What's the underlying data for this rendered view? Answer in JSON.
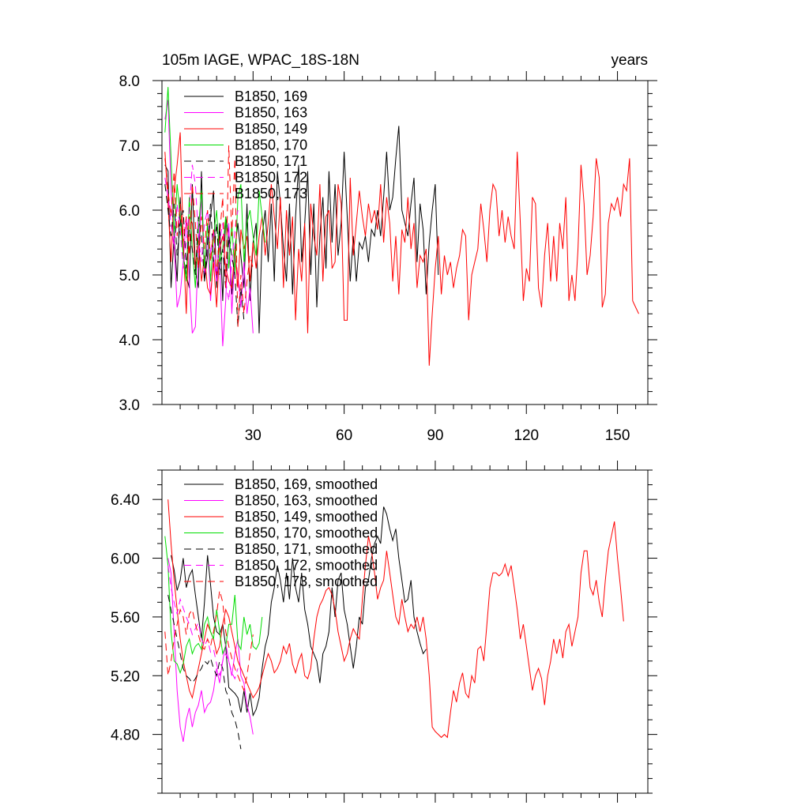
{
  "chart_data": [
    {
      "type": "line",
      "title_left": "105m IAGE, WPAC_18S-18N",
      "title_right": "years",
      "xlabel": "",
      "ylabel": "",
      "xlim": [
        0,
        160
      ],
      "ylim": [
        3.0,
        8.0
      ],
      "x_tick_values": [
        30,
        60,
        90,
        120,
        150
      ],
      "x_tick_labels": [
        "30",
        "60",
        "90",
        "120",
        "150"
      ],
      "y_tick_values": [
        3.0,
        4.0,
        5.0,
        6.0,
        7.0,
        8.0
      ],
      "y_tick_labels": [
        "3.0",
        "4.0",
        "5.0",
        "6.0",
        "7.0",
        "8.0"
      ],
      "legend_position": "top-left",
      "series": [
        {
          "name": "B1850, 169",
          "color": "#000000",
          "dash": "solid",
          "x_start": 1,
          "values": [
            6.7,
            6.6,
            4.8,
            5.6,
            4.9,
            6.2,
            5.3,
            5.0,
            4.8,
            6.4,
            5.1,
            4.8,
            6.6,
            4.9,
            5.3,
            5.9,
            6.3,
            4.8,
            5.8,
            4.6,
            5.9,
            5.6,
            4.7,
            5.4,
            5.8,
            5.3,
            4.8,
            6.1,
            4.6,
            5.5,
            5.8,
            4.1,
            5.6,
            6.0,
            5.2,
            6.1,
            4.9,
            6.6,
            6.1,
            5.4,
            4.9,
            6.1,
            4.7,
            5.9,
            6.7,
            5.2,
            5.8,
            6.6,
            5.0,
            6.1,
            4.5,
            5.6,
            6.2,
            5.1,
            6.6,
            5.5,
            6.4,
            5.3,
            5.8,
            6.9,
            5.9,
            4.9,
            5.6,
            4.9,
            5.5,
            5.4,
            5.6,
            5.2,
            5.7,
            5.6,
            6.0,
            5.6,
            6.2,
            6.9,
            6.0,
            6.2,
            6.8,
            7.3,
            6.0,
            5.8,
            5.6,
            6.1,
            6.5,
            5.2,
            6.1,
            5.7,
            4.7,
            5.5,
            6.0,
            6.4,
            5.0
          ]
        },
        {
          "name": "B1850, 163",
          "color": "#ff00ff",
          "dash": "solid",
          "x_start": 1,
          "values": [
            7.4,
            7.7,
            6.3,
            5.5,
            4.5,
            4.7,
            5.2,
            5.9,
            4.9,
            4.1,
            4.2,
            5.4,
            6.2,
            5.0,
            5.6,
            4.6,
            5.3,
            4.9,
            5.2,
            3.9,
            4.6,
            5.8,
            4.4,
            5.3,
            5.0,
            4.5,
            5.2,
            4.4,
            4.8,
            4.1
          ]
        },
        {
          "name": "B1850, 149",
          "color": "#ff0000",
          "dash": "solid",
          "x_start": 1,
          "values": [
            6.9,
            6.1,
            5.2,
            6.3,
            6.7,
            7.2,
            5.5,
            4.4,
            5.9,
            5.8,
            5.1,
            5.6,
            4.9,
            5.3,
            4.8,
            4.7,
            5.2,
            4.5,
            5.4,
            5.6,
            5.1,
            4.9,
            4.8,
            5.4,
            4.8,
            5.7,
            5.4,
            5.6,
            4.9,
            5.5,
            5.1,
            5.6,
            5.9,
            5.3,
            5.8,
            6.4,
            5.9,
            5.4,
            6.2,
            4.8,
            6.0,
            5.3,
            5.9,
            4.3,
            5.4,
            4.9,
            5.8,
            4.1,
            6.1,
            5.6,
            5.3,
            6.4,
            4.9,
            5.9,
            6.0,
            5.1,
            5.2,
            6.4,
            6.1,
            4.3,
            4.3,
            6.5,
            5.3,
            5.8,
            6.3,
            5.9,
            5.6,
            6.1,
            5.8,
            6.0,
            5.7,
            6.4,
            5.5,
            6.2,
            5.8,
            4.9,
            5.6,
            4.7,
            5.7,
            5.5,
            6.2,
            5.4,
            5.8,
            4.8,
            5.3,
            5.2,
            5.4,
            3.6,
            4.4,
            5.1,
            5.6,
            4.7,
            5.3,
            5.0,
            5.2,
            4.8,
            5.1,
            5.3,
            5.7,
            5.6,
            4.3,
            5.0,
            5.2,
            5.4,
            6.1,
            5.7,
            5.2,
            6.0,
            6.4,
            6.3,
            5.6,
            6.0,
            5.5,
            5.9,
            5.6,
            5.4,
            6.9,
            5.8,
            4.6,
            5.1,
            4.9,
            6.2,
            6.1,
            4.8,
            4.5,
            5.3,
            5.8,
            4.9,
            5.6,
            4.9,
            5.8,
            5.4,
            6.2,
            4.6,
            5.0,
            4.6,
            5.4,
            6.7,
            6.1,
            5.0,
            5.3,
            5.9,
            6.8,
            6.5,
            4.5,
            4.7,
            5.8,
            6.1,
            6.0,
            6.2,
            5.9,
            6.4,
            6.3,
            6.8,
            4.6,
            4.5,
            4.4
          ]
        },
        {
          "name": "B1850, 170",
          "color": "#00dd00",
          "dash": "solid",
          "x_start": 1,
          "values": [
            7.2,
            7.9,
            6.8,
            5.6,
            6.4,
            5.9,
            5.3,
            4.9,
            6.2,
            5.4,
            4.8,
            5.7,
            6.3,
            5.1,
            5.8,
            4.9,
            5.6,
            6.0,
            5.2,
            5.4,
            5.9,
            5.1,
            5.8,
            5.0,
            6.2,
            6.4,
            5.2,
            5.8,
            6.0,
            5.6,
            5.3,
            6.3,
            5.9,
            5.5
          ]
        },
        {
          "name": "B1850, 171",
          "color": "#000000",
          "dash": "dashed",
          "x_start": 1,
          "values": [
            6.4,
            6.0,
            5.6,
            6.1,
            5.3,
            5.8,
            6.0,
            5.1,
            5.7,
            5.4,
            5.0,
            5.9,
            5.6,
            4.9,
            5.5,
            6.1,
            5.2,
            5.8,
            5.0,
            5.4,
            4.8,
            5.6,
            5.3,
            5.0,
            4.2,
            4.8,
            4.3
          ]
        },
        {
          "name": "B1850, 172",
          "color": "#ff00ff",
          "dash": "dashed",
          "x_start": 1,
          "values": [
            6.5,
            6.2,
            5.8,
            5.4,
            6.1,
            5.7,
            5.1,
            5.5,
            6.0,
            6.7,
            6.4,
            5.6,
            5.2,
            5.8,
            6.0,
            5.3,
            5.7,
            5.0,
            5.5,
            5.8,
            4.9,
            4.6,
            5.2,
            5.7,
            6.0
          ]
        },
        {
          "name": "B1850, 173",
          "color": "#ff0000",
          "dash": "dashed",
          "x_start": 1,
          "values": [
            6.8,
            6.3,
            5.9,
            6.6,
            5.6,
            6.1,
            5.5,
            5.9,
            5.3,
            6.4,
            5.8,
            5.1,
            5.9,
            5.4,
            6.0,
            5.2,
            5.7,
            5.0,
            5.6,
            6.2,
            4.8,
            7.0,
            5.6,
            6.8,
            4.2,
            5.0,
            4.4,
            4.9,
            5.3,
            5.1
          ]
        }
      ]
    },
    {
      "type": "line",
      "title": "",
      "xlabel": "",
      "ylabel": "",
      "xlim": [
        0,
        160
      ],
      "ylim": [
        4.4,
        6.6
      ],
      "x_tick_values": [
        30,
        60,
        90,
        120,
        150
      ],
      "y_tick_values": [
        4.8,
        5.2,
        5.6,
        6.0,
        6.4
      ],
      "y_tick_labels": [
        "4.80",
        "5.20",
        "5.60",
        "6.00",
        "6.40"
      ],
      "legend_position": "top-left",
      "series": [
        {
          "name": "B1850, 169, smoothed",
          "color": "#000000",
          "dash": "solid",
          "x_start": 3,
          "values": [
            6.02,
            5.92,
            5.78,
            5.85,
            6.0,
            5.8,
            5.88,
            5.92,
            5.75,
            5.6,
            5.45,
            5.7,
            6.02,
            5.82,
            5.6,
            5.5,
            5.48,
            5.55,
            5.4,
            5.12,
            5.1,
            5.08,
            5.05,
            4.95,
            5.1,
            4.95,
            5.08,
            4.93,
            4.97,
            5.05,
            5.25,
            5.4,
            5.48,
            5.7,
            5.8,
            5.95,
            5.85,
            5.7,
            5.9,
            5.72,
            6.0,
            5.8,
            5.7,
            5.9,
            5.65,
            5.55,
            5.4,
            5.35,
            5.3,
            5.15,
            5.35,
            5.4,
            5.5,
            5.8,
            5.6,
            5.85,
            5.9,
            5.65,
            5.55,
            5.4,
            5.25,
            5.4,
            5.6,
            5.55,
            5.8,
            5.85,
            6.0,
            6.1,
            6.15,
            6.1,
            6.35,
            6.3,
            6.2,
            6.12,
            6.2,
            6.0,
            5.85,
            5.7,
            5.72,
            5.85,
            5.6,
            5.5,
            5.42,
            5.35,
            5.38
          ]
        },
        {
          "name": "B1850, 163, smoothed",
          "color": "#ff00ff",
          "dash": "solid",
          "x_start": 2,
          "values": [
            6.0,
            5.9,
            5.5,
            5.1,
            4.85,
            4.75,
            4.9,
            4.98,
            4.85,
            4.95,
            5.0,
            5.1,
            4.95,
            5.0,
            5.02,
            5.1,
            5.25,
            5.15,
            5.3,
            5.42,
            5.3,
            5.2,
            5.35,
            5.45,
            5.2,
            5.15,
            5.0,
            4.92,
            4.8
          ]
        },
        {
          "name": "B1850, 149, smoothed",
          "color": "#ff0000",
          "dash": "solid",
          "x_start": 2,
          "values": [
            6.4,
            6.1,
            5.85,
            5.65,
            5.45,
            5.3,
            5.2,
            5.1,
            5.05,
            5.15,
            5.25,
            5.35,
            5.45,
            5.55,
            5.5,
            5.45,
            5.35,
            5.4,
            5.55,
            5.65,
            5.6,
            5.5,
            5.4,
            5.3,
            5.25,
            5.2,
            5.15,
            5.1,
            5.05,
            5.08,
            5.12,
            5.2,
            5.28,
            5.35,
            5.3,
            5.22,
            5.25,
            5.3,
            5.4,
            5.35,
            5.42,
            5.28,
            5.22,
            5.3,
            5.35,
            5.2,
            5.18,
            5.25,
            5.45,
            5.6,
            5.68,
            5.72,
            5.78,
            5.8,
            5.75,
            5.65,
            5.5,
            5.4,
            5.3,
            5.35,
            5.45,
            5.52,
            5.48,
            5.45,
            5.72,
            5.95,
            6.15,
            6.05,
            5.9,
            5.72,
            5.8,
            5.85,
            6.05,
            5.9,
            5.75,
            5.6,
            5.55,
            5.72,
            5.6,
            5.5,
            5.55,
            5.52,
            5.6,
            5.5,
            5.6,
            5.45,
            5.2,
            4.85,
            4.82,
            4.8,
            4.78,
            4.8,
            4.78,
            4.95,
            5.1,
            5.02,
            5.15,
            5.22,
            5.08,
            5.05,
            5.2,
            5.15,
            5.38,
            5.4,
            5.3,
            5.55,
            5.8,
            5.9,
            5.9,
            5.88,
            5.9,
            5.96,
            5.88,
            5.95,
            5.8,
            5.65,
            5.45,
            5.55,
            5.4,
            5.25,
            5.1,
            5.2,
            5.25,
            5.18,
            5.0,
            5.2,
            5.3,
            5.45,
            5.35,
            5.45,
            5.32,
            5.5,
            5.55,
            5.4,
            5.5,
            5.6,
            5.9,
            6.05,
            6.05,
            5.8,
            5.75,
            5.85,
            5.7,
            5.6,
            5.85,
            6.05,
            6.15,
            6.25,
            6.0,
            5.8,
            5.57
          ]
        },
        {
          "name": "B1850, 170, smoothed",
          "color": "#00dd00",
          "dash": "solid",
          "x_start": 1,
          "values": [
            6.15,
            5.95,
            5.5,
            5.3,
            5.28,
            5.22,
            5.28,
            5.4,
            5.45,
            5.35,
            5.4,
            5.42,
            5.38,
            5.55,
            5.6,
            5.5,
            5.45,
            5.65,
            5.5,
            5.35,
            5.4,
            5.55,
            5.55,
            5.75,
            5.42,
            5.38,
            5.6,
            5.48,
            5.55,
            5.4,
            5.38,
            5.42,
            5.6
          ]
        },
        {
          "name": "B1850, 171, smoothed",
          "color": "#000000",
          "dash": "dashed",
          "x_start": 2,
          "values": [
            5.75,
            5.65,
            5.55,
            5.45,
            5.35,
            5.25,
            5.2,
            5.18,
            5.15,
            5.18,
            5.22,
            5.25,
            5.3,
            5.28,
            5.32,
            5.25,
            5.2,
            5.3,
            5.25,
            5.1,
            5.05,
            4.95,
            4.9,
            4.82,
            4.7
          ]
        },
        {
          "name": "B1850, 172, smoothed",
          "color": "#ff00ff",
          "dash": "dashed",
          "x_start": 2,
          "values": [
            5.95,
            5.8,
            5.7,
            5.62,
            5.72,
            5.66,
            5.6,
            5.55,
            5.48,
            5.52,
            5.56,
            5.45,
            5.4,
            5.45,
            5.36,
            5.38,
            5.28,
            5.2,
            5.3,
            5.35,
            5.3,
            5.22,
            5.18,
            5.25
          ]
        },
        {
          "name": "B1850, 173, smoothed",
          "color": "#ff0000",
          "dash": "dashed",
          "x_start": 1,
          "values": [
            5.5,
            5.2,
            5.3,
            5.45,
            5.55,
            5.65,
            5.6,
            5.48,
            5.62,
            5.65,
            5.55,
            5.48,
            5.4,
            5.38,
            5.45,
            5.4,
            5.5,
            5.62,
            5.78,
            5.7,
            5.5,
            5.4,
            5.32,
            5.25,
            5.2,
            5.15,
            5.1,
            5.2,
            5.35,
            5.48
          ]
        }
      ]
    }
  ]
}
